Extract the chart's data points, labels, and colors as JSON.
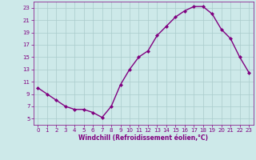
{
  "x": [
    0,
    1,
    2,
    3,
    4,
    5,
    6,
    7,
    8,
    9,
    10,
    11,
    12,
    13,
    14,
    15,
    16,
    17,
    18,
    19,
    20,
    21,
    22,
    23
  ],
  "y": [
    10,
    9,
    8,
    7,
    6.5,
    6.5,
    6,
    5.2,
    7,
    10.5,
    13,
    15,
    16,
    18.5,
    20,
    21.5,
    22.5,
    23.2,
    23.2,
    22,
    19.5,
    18,
    15,
    12.5
  ],
  "line_color": "#800080",
  "marker": "D",
  "marker_size": 2,
  "bg_color": "#cde9e9",
  "grid_color": "#aacccc",
  "xlabel": "Windchill (Refroidissement éolien,°C)",
  "xlabel_color": "#800080",
  "tick_color": "#800080",
  "ylim": [
    4,
    24
  ],
  "xlim": [
    -0.5,
    23.5
  ],
  "yticks": [
    5,
    7,
    9,
    11,
    13,
    15,
    17,
    19,
    21,
    23
  ],
  "xticks": [
    0,
    1,
    2,
    3,
    4,
    5,
    6,
    7,
    8,
    9,
    10,
    11,
    12,
    13,
    14,
    15,
    16,
    17,
    18,
    19,
    20,
    21,
    22,
    23
  ],
  "tick_labelsize": 5,
  "xlabel_fontsize": 5.5,
  "linewidth": 1.0
}
